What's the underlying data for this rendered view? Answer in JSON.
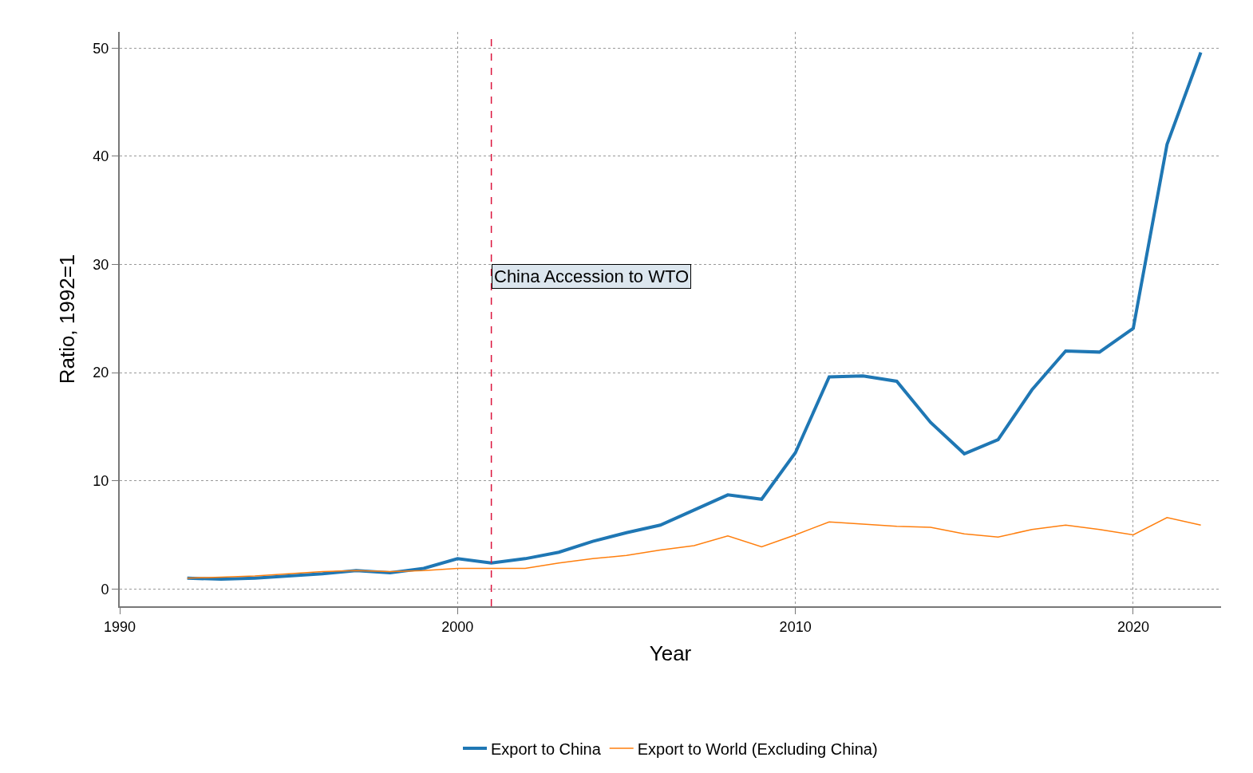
{
  "chart_data": {
    "type": "line",
    "xlabel": "Year",
    "ylabel": "Ratio, 1992=1",
    "x": [
      1992,
      1993,
      1994,
      1995,
      1996,
      1997,
      1998,
      1999,
      2000,
      2001,
      2002,
      2003,
      2004,
      2005,
      2006,
      2007,
      2008,
      2009,
      2010,
      2011,
      2012,
      2013,
      2014,
      2015,
      2016,
      2017,
      2018,
      2019,
      2020,
      2021,
      2022
    ],
    "series": [
      {
        "name": "Export to China",
        "color": "#1f77b4",
        "values": [
          1.0,
          0.9,
          1.0,
          1.2,
          1.4,
          1.7,
          1.5,
          1.9,
          2.8,
          2.4,
          2.8,
          3.4,
          4.4,
          5.2,
          5.9,
          7.3,
          8.7,
          8.3,
          12.6,
          19.6,
          19.7,
          19.2,
          15.4,
          12.5,
          13.8,
          18.4,
          22.0,
          21.9,
          24.1,
          41.1,
          49.6
        ]
      },
      {
        "name": "Export to World (Excluding China)",
        "color": "#ff7f0e",
        "values": [
          1.0,
          1.1,
          1.2,
          1.4,
          1.6,
          1.7,
          1.6,
          1.7,
          1.9,
          1.9,
          1.9,
          2.4,
          2.8,
          3.1,
          3.6,
          4.0,
          4.9,
          3.9,
          5.0,
          6.2,
          6.0,
          5.8,
          5.7,
          5.1,
          4.8,
          5.5,
          5.9,
          5.5,
          5.0,
          6.6,
          5.9
        ]
      }
    ],
    "xlim": [
      1990,
      2022.6
    ],
    "xticks": [
      1990,
      2000,
      2010,
      2020
    ],
    "ylim": [
      -1.6,
      51.5
    ],
    "yticks": [
      0,
      10,
      20,
      30,
      40,
      50
    ],
    "ref_lines": [
      {
        "axis": "x",
        "value": 2001,
        "label": "China Accession to WTO",
        "color": "#dc143c",
        "line_style": "dashed"
      }
    ],
    "grid": true,
    "legend": "bottom",
    "line_style": "solid",
    "marker": "none"
  }
}
